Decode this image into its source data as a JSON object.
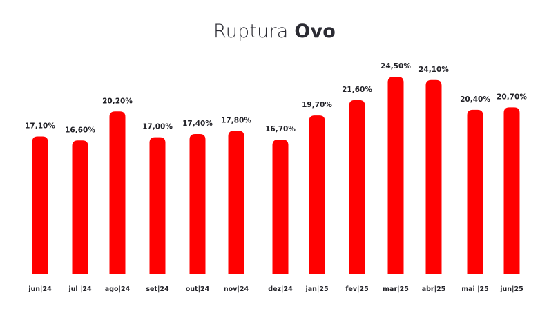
{
  "title": {
    "light": "Ruptura",
    "bold": "Ovo"
  },
  "colors": {
    "bar": "#ff0000",
    "text": "#222228"
  },
  "chart_data": {
    "type": "bar",
    "title": "Ruptura Ovo",
    "xlabel": "",
    "ylabel": "",
    "ylim": [
      0,
      25
    ],
    "grid": false,
    "categories": [
      "jun|24",
      "jul |24",
      "ago|24",
      "set|24",
      "out|24",
      "nov|24",
      "dez|24",
      "jan|25",
      "fev|25",
      "mar|25",
      "abr|25",
      "mai |25",
      "jun|25"
    ],
    "values": [
      17.1,
      16.6,
      20.2,
      17.0,
      17.4,
      17.8,
      16.7,
      19.7,
      21.6,
      24.5,
      24.1,
      20.4,
      20.7
    ],
    "value_labels": [
      "17,10%",
      "16,60%",
      "20,20%",
      "17,00%",
      "17,40%",
      "17,80%",
      "16,70%",
      "19,70%",
      "21,60%",
      "24,50%",
      "24,10%",
      "20,40%",
      "20,70%"
    ]
  }
}
